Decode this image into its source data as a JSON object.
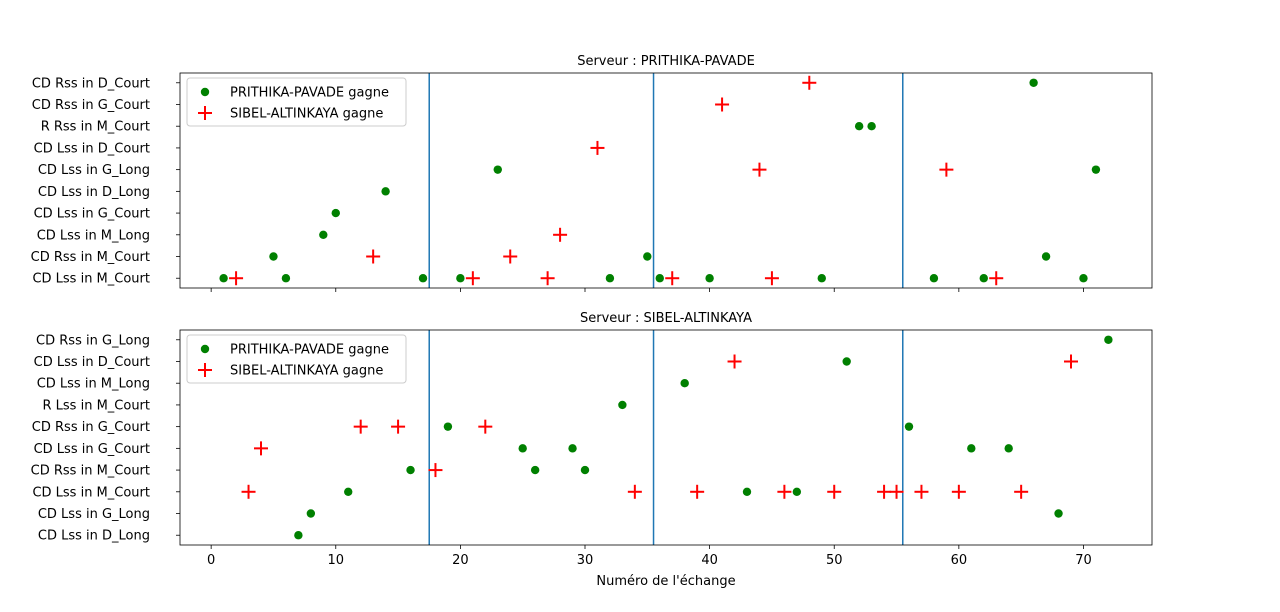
{
  "chart_data": [
    {
      "type": "scatter",
      "title": "Serveur : PRITHIKA-PAVADE",
      "xlabel": "",
      "ylabel": "",
      "xlim": [
        -2.5,
        75.5
      ],
      "xticks": [
        0,
        10,
        20,
        30,
        40,
        50,
        60,
        70
      ],
      "show_xtick_labels": false,
      "categories": [
        "CD Lss in M_Court",
        "CD Rss in M_Court",
        "CD Lss in M_Long",
        "CD Lss in G_Court",
        "CD Lss in D_Long",
        "CD Lss in G_Long",
        "CD Lss in D_Court",
        "R Rss in M_Court",
        "CD Rss in G_Court",
        "CD Rss in D_Court"
      ],
      "vlines": [
        17.5,
        35.5,
        55.5
      ],
      "legend_position": "upper-left",
      "series": [
        {
          "name": "PRITHIKA-PAVADE gagne",
          "marker": "dot",
          "color": "#008000",
          "points": [
            [
              1,
              "CD Lss in M_Court"
            ],
            [
              5,
              "CD Rss in M_Court"
            ],
            [
              6,
              "CD Lss in M_Court"
            ],
            [
              9,
              "CD Lss in M_Long"
            ],
            [
              10,
              "CD Lss in G_Court"
            ],
            [
              14,
              "CD Lss in D_Long"
            ],
            [
              17,
              "CD Lss in M_Court"
            ],
            [
              20,
              "CD Lss in M_Court"
            ],
            [
              23,
              "CD Lss in G_Long"
            ],
            [
              32,
              "CD Lss in M_Court"
            ],
            [
              35,
              "CD Rss in M_Court"
            ],
            [
              36,
              "CD Lss in M_Court"
            ],
            [
              40,
              "CD Lss in M_Court"
            ],
            [
              49,
              "CD Lss in M_Court"
            ],
            [
              52,
              "R Rss in M_Court"
            ],
            [
              53,
              "R Rss in M_Court"
            ],
            [
              58,
              "CD Lss in M_Court"
            ],
            [
              62,
              "CD Lss in M_Court"
            ],
            [
              66,
              "CD Rss in D_Court"
            ],
            [
              67,
              "CD Rss in M_Court"
            ],
            [
              70,
              "CD Lss in M_Court"
            ],
            [
              71,
              "CD Lss in G_Long"
            ]
          ]
        },
        {
          "name": "SIBEL-ALTINKAYA gagne",
          "marker": "plus",
          "color": "#ff0000",
          "points": [
            [
              2,
              "CD Lss in M_Court"
            ],
            [
              13,
              "CD Rss in M_Court"
            ],
            [
              21,
              "CD Lss in M_Court"
            ],
            [
              24,
              "CD Rss in M_Court"
            ],
            [
              27,
              "CD Lss in M_Court"
            ],
            [
              28,
              "CD Lss in M_Long"
            ],
            [
              31,
              "CD Lss in D_Court"
            ],
            [
              37,
              "CD Lss in M_Court"
            ],
            [
              41,
              "CD Rss in G_Court"
            ],
            [
              44,
              "CD Lss in G_Long"
            ],
            [
              45,
              "CD Lss in M_Court"
            ],
            [
              48,
              "CD Rss in D_Court"
            ],
            [
              59,
              "CD Lss in G_Long"
            ],
            [
              63,
              "CD Lss in M_Court"
            ]
          ]
        }
      ]
    },
    {
      "type": "scatter",
      "title": "Serveur : SIBEL-ALTINKAYA",
      "xlabel": "Numéro de l'échange",
      "ylabel": "",
      "xlim": [
        -2.5,
        75.5
      ],
      "xticks": [
        0,
        10,
        20,
        30,
        40,
        50,
        60,
        70
      ],
      "show_xtick_labels": true,
      "categories": [
        "CD Lss in D_Long",
        "CD Lss in G_Long",
        "CD Lss in M_Court",
        "CD Rss in M_Court",
        "CD Lss in G_Court",
        "CD Rss in G_Court",
        "R Lss in M_Court",
        "CD Lss in M_Long",
        "CD Lss in D_Court",
        "CD Rss in G_Long"
      ],
      "vlines": [
        17.5,
        35.5,
        55.5
      ],
      "legend_position": "upper-left",
      "series": [
        {
          "name": "PRITHIKA-PAVADE gagne",
          "marker": "dot",
          "color": "#008000",
          "points": [
            [
              7,
              "CD Lss in D_Long"
            ],
            [
              8,
              "CD Lss in G_Long"
            ],
            [
              11,
              "CD Lss in M_Court"
            ],
            [
              16,
              "CD Rss in M_Court"
            ],
            [
              19,
              "CD Rss in G_Court"
            ],
            [
              25,
              "CD Lss in G_Court"
            ],
            [
              26,
              "CD Rss in M_Court"
            ],
            [
              29,
              "CD Lss in G_Court"
            ],
            [
              30,
              "CD Rss in M_Court"
            ],
            [
              33,
              "R Lss in M_Court"
            ],
            [
              38,
              "CD Lss in M_Long"
            ],
            [
              43,
              "CD Lss in M_Court"
            ],
            [
              47,
              "CD Lss in M_Court"
            ],
            [
              51,
              "CD Lss in D_Court"
            ],
            [
              56,
              "CD Rss in G_Court"
            ],
            [
              61,
              "CD Lss in G_Court"
            ],
            [
              64,
              "CD Lss in G_Court"
            ],
            [
              68,
              "CD Lss in G_Long"
            ],
            [
              72,
              "CD Rss in G_Long"
            ]
          ]
        },
        {
          "name": "SIBEL-ALTINKAYA gagne",
          "marker": "plus",
          "color": "#ff0000",
          "points": [
            [
              3,
              "CD Lss in M_Court"
            ],
            [
              4,
              "CD Lss in G_Court"
            ],
            [
              12,
              "CD Rss in G_Court"
            ],
            [
              15,
              "CD Rss in G_Court"
            ],
            [
              18,
              "CD Rss in M_Court"
            ],
            [
              22,
              "CD Rss in G_Court"
            ],
            [
              34,
              "CD Lss in M_Court"
            ],
            [
              39,
              "CD Lss in M_Court"
            ],
            [
              42,
              "CD Lss in D_Court"
            ],
            [
              46,
              "CD Lss in M_Court"
            ],
            [
              50,
              "CD Lss in M_Court"
            ],
            [
              54,
              "CD Lss in M_Court"
            ],
            [
              55,
              "CD Lss in M_Court"
            ],
            [
              57,
              "CD Lss in M_Court"
            ],
            [
              60,
              "CD Lss in M_Court"
            ],
            [
              65,
              "CD Lss in M_Court"
            ],
            [
              69,
              "CD Lss in D_Court"
            ]
          ]
        }
      ]
    }
  ]
}
